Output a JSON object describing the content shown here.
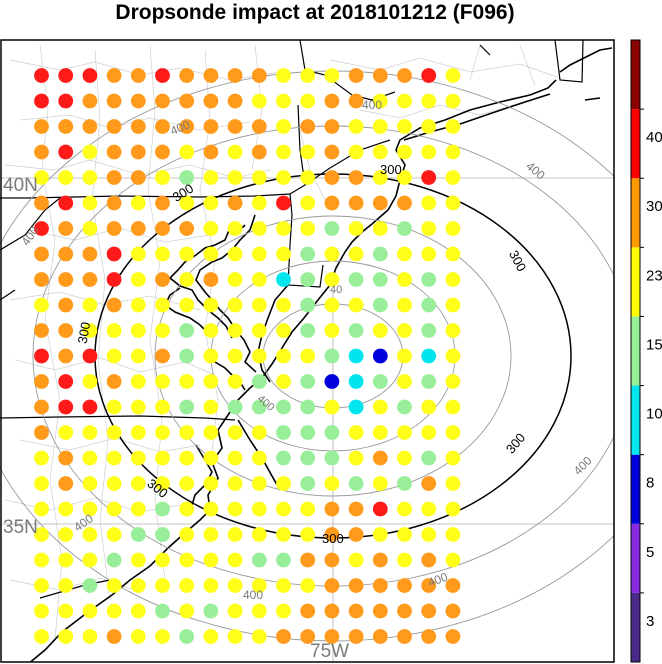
{
  "title": "Dropsonde impact at 2018101212 (F096)",
  "lat_labels": [
    "40N",
    "35N"
  ],
  "lon_labels": [
    "75W"
  ],
  "contour_labels": [
    "400",
    "300",
    "300",
    "300",
    "300",
    "300",
    "300",
    "400",
    "400",
    "400",
    "400",
    "400",
    "400",
    "400",
    "400",
    "40"
  ],
  "colorbar": {
    "tick_labels": [
      "3",
      "5",
      "8",
      "10",
      "15",
      "23",
      "30",
      "40"
    ],
    "bins": [
      {
        "color": "#4b2a8a"
      },
      {
        "color": "#8a2be2"
      },
      {
        "color": "#0000dd"
      },
      {
        "color": "#00e5ee"
      },
      {
        "color": "#99ee99"
      },
      {
        "color": "#ffff00"
      },
      {
        "color": "#ff9900"
      },
      {
        "color": "#ff0000"
      },
      {
        "color": "#8b0000"
      }
    ]
  },
  "colors": {
    "R": "#ff1a1a",
    "O": "#ff9a1a",
    "Y": "#ffff1a",
    "G": "#99ee99",
    "C": "#00e5ee",
    "B": "#0000dd"
  },
  "grid": [
    "RRROOROOOOYYYOOORY",
    "RROOOOOOOYYYOOYYYY",
    "OOOOOOOOOOYOOYYYYY",
    "ORYOOOYOYOYYOYYYYY",
    "YYYOOYGYYYYYOOYYRY",
    "ORYOYOYYOYRYOOOOYY",
    "ROYOOOOYYYYYGYYGYY",
    "OOORYYYYYYYGYYGYYY",
    "OOORYOYOYYCGYGGYGY",
    "YOYOYYYYYYYGYYGYGY",
    "OOYYYYGYYYYGYGYYGY",
    "RORYYOGYYYYYGCBYCY",
    "ORYOYYYYYGYGBCGYGY",
    "ORRYYYGYGGGGYCYGYY",
    "OYYYYYYYYYGGGYYYYY",
    "YOYYYYYYYYGGGYOYGY",
    "YOYYYYYYYYYGYGYGOY",
    "YYYYYGYYYYYYOORYYY",
    "YYYYGGYYYYYYOOYYYY",
    "YYYGYYYYYGGOOYOYOY",
    "YYGYYYYYYYYYOOOOOO",
    "YYYYYGYGYYYOOOOOOO",
    "YYYOYYGYYYOOOOOOOO"
  ]
}
